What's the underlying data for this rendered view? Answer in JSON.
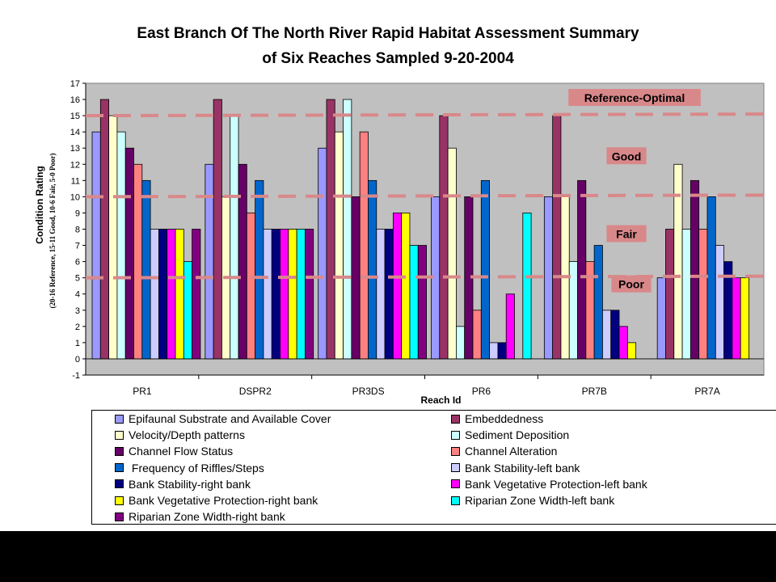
{
  "chart_data": {
    "type": "bar",
    "title_line1": "East Branch Of The North River Rapid Habitat Assessment Summary",
    "title_line2": "of Six Reaches Sampled 9-20-2004",
    "xlabel": "Reach Id",
    "ylabel": "Condition Rating",
    "ylabel_sub": "(20-16 Reference, 15-11 Good, 10-6 Fair, 5-0 Poor)",
    "ylim": [
      -1,
      17
    ],
    "yticks": [
      "-1",
      "0",
      "1",
      "2",
      "3",
      "4",
      "5",
      "6",
      "7",
      "8",
      "9",
      "10",
      "11",
      "12",
      "13",
      "14",
      "15",
      "16",
      "17"
    ],
    "categories": [
      "PR1",
      "DSPR2",
      "PR3DS",
      "PR6",
      "PR7B",
      "PR7A"
    ],
    "reference_lines": [
      15,
      10,
      5
    ],
    "zone_labels": [
      {
        "text": "Reference-Optimal",
        "value": 16.1
      },
      {
        "text": "Good",
        "value": 12.5
      },
      {
        "text": "Fair",
        "value": 7.7
      },
      {
        "text": "Poor",
        "value": 4.6
      }
    ],
    "plot_background": "#c0c0c0",
    "reference_line_color": "#d9888a",
    "series": [
      {
        "name": "Epifaunal Substrate and Available Cover",
        "color": "#9999ff",
        "values": [
          14,
          12,
          13,
          10,
          10,
          5
        ]
      },
      {
        "name": "Embeddedness",
        "color": "#993366",
        "values": [
          16,
          16,
          16,
          15,
          15,
          8
        ]
      },
      {
        "name": "Velocity/Depth patterns",
        "color": "#ffffcc",
        "values": [
          15,
          10,
          14,
          13,
          10,
          12
        ]
      },
      {
        "name": "Sediment Deposition",
        "color": "#ccffff",
        "values": [
          14,
          15,
          16,
          2,
          6,
          8
        ]
      },
      {
        "name": "Channel Flow Status",
        "color": "#660066",
        "values": [
          13,
          12,
          10,
          10,
          11,
          11
        ]
      },
      {
        "name": "Channel Alteration",
        "color": "#ff8080",
        "values": [
          12,
          9,
          14,
          3,
          6,
          8
        ]
      },
      {
        "name": " Frequency of Riffles/Steps",
        "color": "#0066cc",
        "values": [
          11,
          11,
          11,
          11,
          7,
          10
        ]
      },
      {
        "name": "Bank Stability-left bank",
        "color": "#ccccff",
        "values": [
          8,
          8,
          8,
          1,
          3,
          7
        ]
      },
      {
        "name": "Bank Stability-right bank",
        "color": "#000080",
        "values": [
          8,
          8,
          8,
          1,
          3,
          6
        ]
      },
      {
        "name": "Bank Vegetative Protection-left bank",
        "color": "#ff00ff",
        "values": [
          8,
          8,
          9,
          4,
          2,
          5
        ]
      },
      {
        "name": "Bank Vegetative Protection-right bank",
        "color": "#ffff00",
        "values": [
          8,
          8,
          9,
          0,
          1,
          5
        ]
      },
      {
        "name": "Riparian Zone Width-left bank",
        "color": "#00ffff",
        "values": [
          6,
          8,
          7,
          9,
          0,
          0
        ]
      },
      {
        "name": "Riparian Zone Width-right bank",
        "color": "#800080",
        "values": [
          8,
          8,
          7,
          0,
          0,
          0
        ]
      }
    ],
    "grid": false,
    "legend_position": "bottom"
  }
}
